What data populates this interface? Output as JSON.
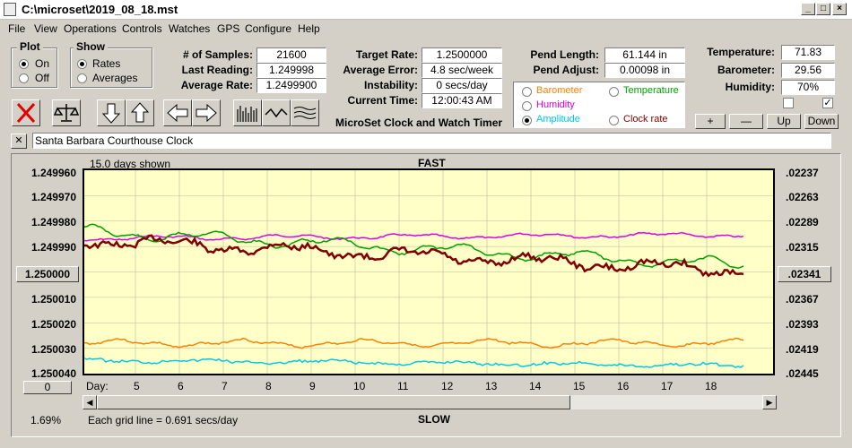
{
  "window": {
    "title": "C:\\microset\\2019_08_18.mst"
  },
  "menu": [
    "File",
    "View",
    "Operations",
    "Controls",
    "Watches",
    "GPS",
    "Configure",
    "Help"
  ],
  "plot_group": {
    "title": "Plot",
    "on": "On",
    "off": "Off",
    "selected": "On"
  },
  "show_group": {
    "title": "Show",
    "rates": "Rates",
    "averages": "Averages",
    "selected": "Rates"
  },
  "stats": {
    "samples_label": "# of Samples:",
    "samples": "21600",
    "last_label": "Last Reading:",
    "last": "1.249998",
    "avg_label": "Average Rate:",
    "avg": "1.2499900",
    "target_label": "Target Rate:",
    "target": "1.2500000",
    "error_label": "Average Error:",
    "error": "4.8 sec/week",
    "instability_label": "Instability:",
    "instability": "0 secs/day",
    "time_label": "Current Time:",
    "time": "12:00:43 AM",
    "pend_length_label": "Pend Length:",
    "pend_length": "61.144 in",
    "pend_adjust_label": "Pend Adjust:",
    "pend_adjust": "0.00098 in",
    "temp_label": "Temperature:",
    "temp": "71.83",
    "baro_label": "Barometer:",
    "baro": "29.56",
    "humid_label": "Humidity:",
    "humid": "70%"
  },
  "subtitle": "MicroSet Clock and Watch Timer",
  "legend": {
    "barometer": {
      "label": "Barometer",
      "color": "#ff8000"
    },
    "temperature": {
      "label": "Temperature",
      "color": "#00a000"
    },
    "humidity": {
      "label": "Humidity",
      "color": "#e000e0"
    },
    "amplitude": {
      "label": "Amplitude",
      "color": "#00c8e8"
    },
    "clock_rate": {
      "label": "Clock rate",
      "color": "#800000"
    },
    "selected": "Amplitude"
  },
  "adjust_buttons": {
    "plus": "+",
    "minus": "—",
    "up": "Up",
    "down": "Down"
  },
  "checkboxes": {
    "left": false,
    "right": true
  },
  "description": {
    "close": "✕",
    "value": "Santa Barbara Courthouse Clock"
  },
  "graph": {
    "days_shown": "15.0 days shown",
    "top_label": "FAST",
    "bottom_label": "SLOW",
    "y_left": [
      "1.249960",
      "1.249970",
      "1.249980",
      "1.249990",
      "1.250000",
      "1.250010",
      "1.250020",
      "1.250030",
      "1.250040"
    ],
    "y_right": [
      ".02237",
      ".02263",
      ".02289",
      ".02315",
      ".02341",
      ".02367",
      ".02393",
      ".02419",
      ".02445"
    ],
    "center_button_left": "1.250000",
    "center_button_right": ".02341",
    "zero_button": "0",
    "day_label": "Day:",
    "days": [
      "5",
      "6",
      "7",
      "8",
      "9",
      "10",
      "11",
      "12",
      "13",
      "14",
      "15",
      "16",
      "17",
      "18"
    ],
    "percent": "1.69%",
    "grid_note": "Each grid line = 0.691 secs/day"
  }
}
